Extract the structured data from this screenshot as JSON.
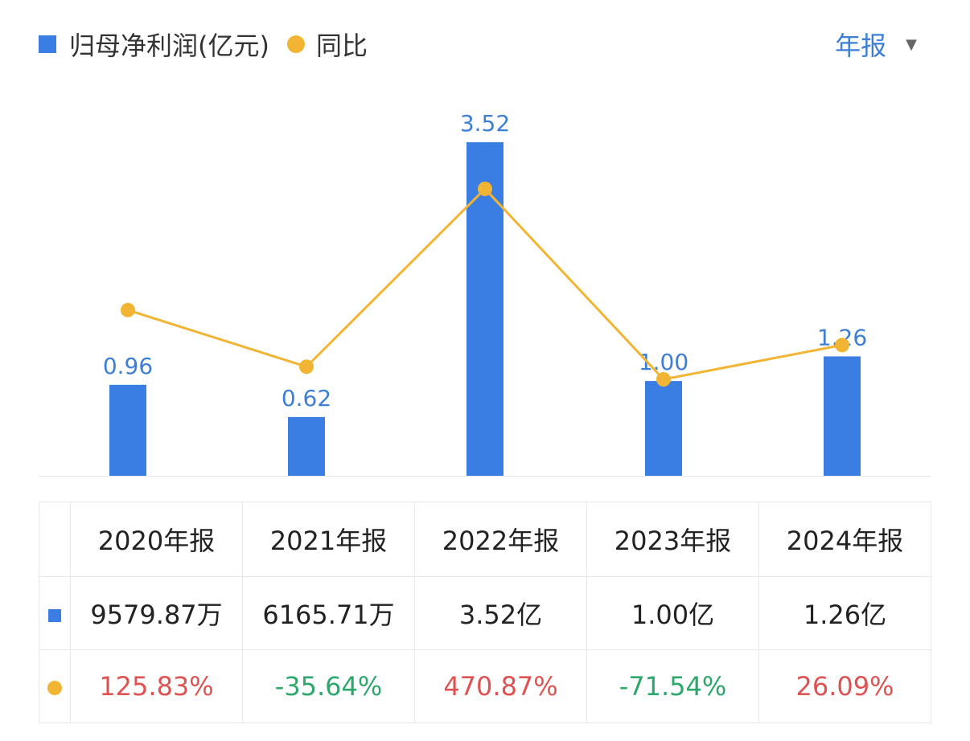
{
  "legend": {
    "bar_label": "归母净利润(亿元)",
    "line_label": "同比"
  },
  "period_selector": {
    "label": "年报",
    "caret": "▼"
  },
  "colors": {
    "bar": "#3a7ee4",
    "line": "#f2b533",
    "bar_label": "#3d7fd6",
    "positive": "#e05252",
    "negative": "#2ea76c",
    "period": "#3d7fd6",
    "grid": "#e6e6e6"
  },
  "chart_data": {
    "type": "bar",
    "categories": [
      "2020年报",
      "2021年报",
      "2022年报",
      "2023年报",
      "2024年报"
    ],
    "series": [
      {
        "name": "归母净利润(亿元)",
        "type": "bar",
        "values": [
          0.96,
          0.62,
          3.52,
          1.0,
          1.26
        ],
        "data_labels": [
          "0.96",
          "0.62",
          "3.52",
          "1.00",
          "1.26"
        ]
      },
      {
        "name": "同比",
        "type": "line",
        "values": [
          125.83,
          -35.64,
          470.87,
          -71.54,
          26.09
        ],
        "unit": "%"
      }
    ],
    "ylim": [
      0,
      3.52
    ],
    "grid": false,
    "legend": "top-left"
  },
  "table": {
    "headers": [
      "2020年报",
      "2021年报",
      "2022年报",
      "2023年报",
      "2024年报"
    ],
    "profit_row": [
      "9579.87万",
      "6165.71万",
      "3.52亿",
      "1.00亿",
      "1.26亿"
    ],
    "yoy_row": [
      "125.83%",
      "-35.64%",
      "470.87%",
      "-71.54%",
      "26.09%"
    ]
  }
}
